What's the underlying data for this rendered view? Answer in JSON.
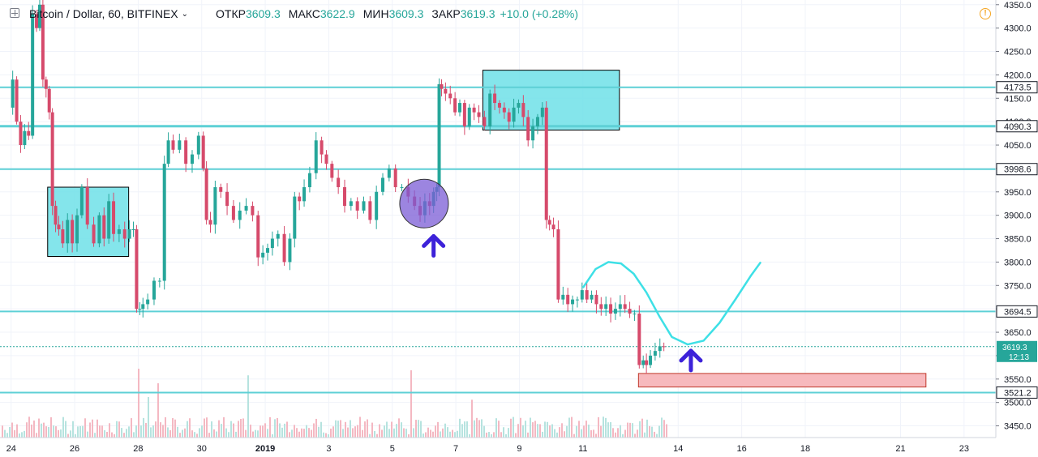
{
  "header": {
    "symbol": "Bitcoin / Dollar, 60, BITFINEX",
    "open_label": "ОТКР",
    "open_value": "3609.3",
    "high_label": "МАКС",
    "high_value": "3622.9",
    "low_label": "МИН",
    "low_value": "3609.3",
    "close_label": "ЗАКР",
    "close_value": "3619.3",
    "change": "+10.0 (+0.28%)"
  },
  "colors": {
    "up": "#26a69a",
    "down": "#d64a6b",
    "level": "#5ed0d6",
    "zone": "#6fe0e8",
    "target_zone": "#f7b9bd",
    "circle": "#7b5cd6",
    "arrow": "#3d22d9",
    "path": "#3ee0e6",
    "axis_text": "#131722"
  },
  "chart_data": {
    "type": "candlestick",
    "y_ticks": [
      3450,
      3500,
      3550,
      3600,
      3650,
      3700,
      3750,
      3800,
      3850,
      3900,
      3950,
      4000,
      4050,
      4100,
      4150,
      4200,
      4250,
      4300,
      4350
    ],
    "x_ticks": [
      {
        "label": "24",
        "t": 24
      },
      {
        "label": "26",
        "t": 26
      },
      {
        "label": "28",
        "t": 28
      },
      {
        "label": "30",
        "t": 30
      },
      {
        "label": "2019",
        "t": 32,
        "bold": true
      },
      {
        "label": "3",
        "t": 34
      },
      {
        "label": "5",
        "t": 36
      },
      {
        "label": "7",
        "t": 38
      },
      {
        "label": "9",
        "t": 40
      },
      {
        "label": "11",
        "t": 42
      },
      {
        "label": "14",
        "t": 45
      },
      {
        "label": "16",
        "t": 47
      },
      {
        "label": "18",
        "t": 49
      },
      {
        "label": "21",
        "t": 52
      },
      {
        "label": "23",
        "t": 54
      }
    ],
    "y_range": [
      3425,
      4360
    ],
    "t_range": [
      23.65,
      55.0
    ],
    "levels": [
      {
        "price": 4173.5,
        "label": "4173.5"
      },
      {
        "price": 4090.3,
        "label": "4090.3",
        "thick": true
      },
      {
        "price": 3998.6,
        "label": "3998.6"
      },
      {
        "price": 3694.5,
        "label": "3694.5"
      },
      {
        "price": 3521.2,
        "label": "3521.2"
      }
    ],
    "current_price": {
      "price": 3619.3,
      "label": "3619.3",
      "countdown": "12:13"
    },
    "price_path": [
      [
        24.0,
        4130
      ],
      [
        24.1,
        4190
      ],
      [
        24.25,
        4100
      ],
      [
        24.35,
        4050
      ],
      [
        24.5,
        4080
      ],
      [
        24.6,
        4070
      ],
      [
        24.75,
        4330
      ],
      [
        24.85,
        4300
      ],
      [
        24.95,
        4350
      ],
      [
        25.05,
        4190
      ],
      [
        25.15,
        4170
      ],
      [
        25.25,
        4120
      ],
      [
        25.35,
        3920
      ],
      [
        25.45,
        3880
      ],
      [
        25.55,
        3870
      ],
      [
        25.7,
        3840
      ],
      [
        25.85,
        3890
      ],
      [
        26.0,
        3840
      ],
      [
        26.15,
        3900
      ],
      [
        26.3,
        3960
      ],
      [
        26.5,
        3880
      ],
      [
        26.7,
        3840
      ],
      [
        26.85,
        3900
      ],
      [
        27.0,
        3850
      ],
      [
        27.15,
        3930
      ],
      [
        27.3,
        3860
      ],
      [
        27.5,
        3870
      ],
      [
        27.65,
        3850
      ],
      [
        27.8,
        3870
      ],
      [
        27.9,
        3870
      ],
      [
        28.0,
        3700
      ],
      [
        28.1,
        3700
      ],
      [
        28.2,
        3710
      ],
      [
        28.4,
        3720
      ],
      [
        28.6,
        3760
      ],
      [
        28.75,
        3760
      ],
      [
        28.9,
        4010
      ],
      [
        29.0,
        4060
      ],
      [
        29.2,
        4040
      ],
      [
        29.4,
        4060
      ],
      [
        29.6,
        4010
      ],
      [
        29.8,
        4030
      ],
      [
        30.0,
        4070
      ],
      [
        30.1,
        4000
      ],
      [
        30.2,
        3890
      ],
      [
        30.35,
        3880
      ],
      [
        30.5,
        3960
      ],
      [
        30.7,
        3950
      ],
      [
        30.9,
        3920
      ],
      [
        31.1,
        3890
      ],
      [
        31.3,
        3910
      ],
      [
        31.5,
        3920
      ],
      [
        31.7,
        3900
      ],
      [
        31.85,
        3810
      ],
      [
        32.0,
        3820
      ],
      [
        32.15,
        3830
      ],
      [
        32.3,
        3850
      ],
      [
        32.5,
        3860
      ],
      [
        32.7,
        3800
      ],
      [
        32.85,
        3850
      ],
      [
        33.0,
        3940
      ],
      [
        33.15,
        3930
      ],
      [
        33.3,
        3960
      ],
      [
        33.5,
        3990
      ],
      [
        33.7,
        4060
      ],
      [
        33.85,
        4030
      ],
      [
        34.0,
        4010
      ],
      [
        34.2,
        3980
      ],
      [
        34.4,
        3960
      ],
      [
        34.6,
        3920
      ],
      [
        34.8,
        3930
      ],
      [
        35.0,
        3910
      ],
      [
        35.2,
        3930
      ],
      [
        35.4,
        3890
      ],
      [
        35.6,
        3950
      ],
      [
        35.8,
        3980
      ],
      [
        36.0,
        4000
      ],
      [
        36.2,
        3960
      ],
      [
        36.4,
        3960
      ],
      [
        36.6,
        3940
      ],
      [
        36.8,
        3920
      ],
      [
        36.95,
        3900
      ],
      [
        37.1,
        3930
      ],
      [
        37.25,
        3920
      ],
      [
        37.35,
        3950
      ],
      [
        37.45,
        3960
      ],
      [
        37.5,
        4180
      ],
      [
        37.6,
        4170
      ],
      [
        37.75,
        4160
      ],
      [
        37.9,
        4150
      ],
      [
        38.05,
        4120
      ],
      [
        38.2,
        4140
      ],
      [
        38.35,
        4090
      ],
      [
        38.5,
        4130
      ],
      [
        38.65,
        4120
      ],
      [
        38.8,
        4110
      ],
      [
        39.0,
        4090
      ],
      [
        39.15,
        4160
      ],
      [
        39.3,
        4140
      ],
      [
        39.45,
        4130
      ],
      [
        39.6,
        4120
      ],
      [
        39.75,
        4100
      ],
      [
        39.9,
        4130
      ],
      [
        40.05,
        4140
      ],
      [
        40.2,
        4110
      ],
      [
        40.35,
        4060
      ],
      [
        40.5,
        4090
      ],
      [
        40.65,
        4110
      ],
      [
        40.8,
        4130
      ],
      [
        40.9,
        3890
      ],
      [
        41.0,
        3880
      ],
      [
        41.15,
        3870
      ],
      [
        41.3,
        3720
      ],
      [
        41.45,
        3730
      ],
      [
        41.6,
        3710
      ],
      [
        41.75,
        3720
      ],
      [
        41.9,
        3720
      ],
      [
        42.05,
        3740
      ],
      [
        42.2,
        3720
      ],
      [
        42.35,
        3730
      ],
      [
        42.5,
        3710
      ],
      [
        42.65,
        3700
      ],
      [
        42.8,
        3710
      ],
      [
        42.95,
        3690
      ],
      [
        43.1,
        3700
      ],
      [
        43.25,
        3710
      ],
      [
        43.4,
        3700
      ],
      [
        43.55,
        3690
      ],
      [
        43.7,
        3690
      ],
      [
        43.85,
        3580
      ],
      [
        43.95,
        3590
      ],
      [
        44.05,
        3580
      ],
      [
        44.2,
        3600
      ],
      [
        44.35,
        3610
      ],
      [
        44.5,
        3620
      ],
      [
        44.6,
        3619.3
      ]
    ],
    "zones": [
      {
        "t0": 25.15,
        "t1": 27.7,
        "p0": 3812,
        "p1": 3960
      },
      {
        "t0": 38.85,
        "t1": 43.15,
        "p0": 4082,
        "p1": 4210
      },
      {
        "t0": 43.75,
        "t1": 52.8,
        "p0": 3533,
        "p1": 3562,
        "pink": true
      }
    ],
    "projection": [
      [
        42.0,
        3745
      ],
      [
        42.4,
        3785
      ],
      [
        42.8,
        3800
      ],
      [
        43.2,
        3797
      ],
      [
        43.6,
        3775
      ],
      [
        44.0,
        3735
      ],
      [
        44.4,
        3685
      ],
      [
        44.8,
        3640
      ],
      [
        45.3,
        3624
      ],
      [
        45.8,
        3632
      ],
      [
        46.3,
        3670
      ],
      [
        46.8,
        3720
      ],
      [
        47.3,
        3772
      ],
      [
        47.6,
        3800
      ]
    ],
    "circle": {
      "t": 37.0,
      "p": 3925,
      "r": 30
    },
    "arrows": [
      {
        "t": 37.3,
        "p": 3845
      },
      {
        "t": 45.4,
        "p": 3600
      }
    ]
  }
}
